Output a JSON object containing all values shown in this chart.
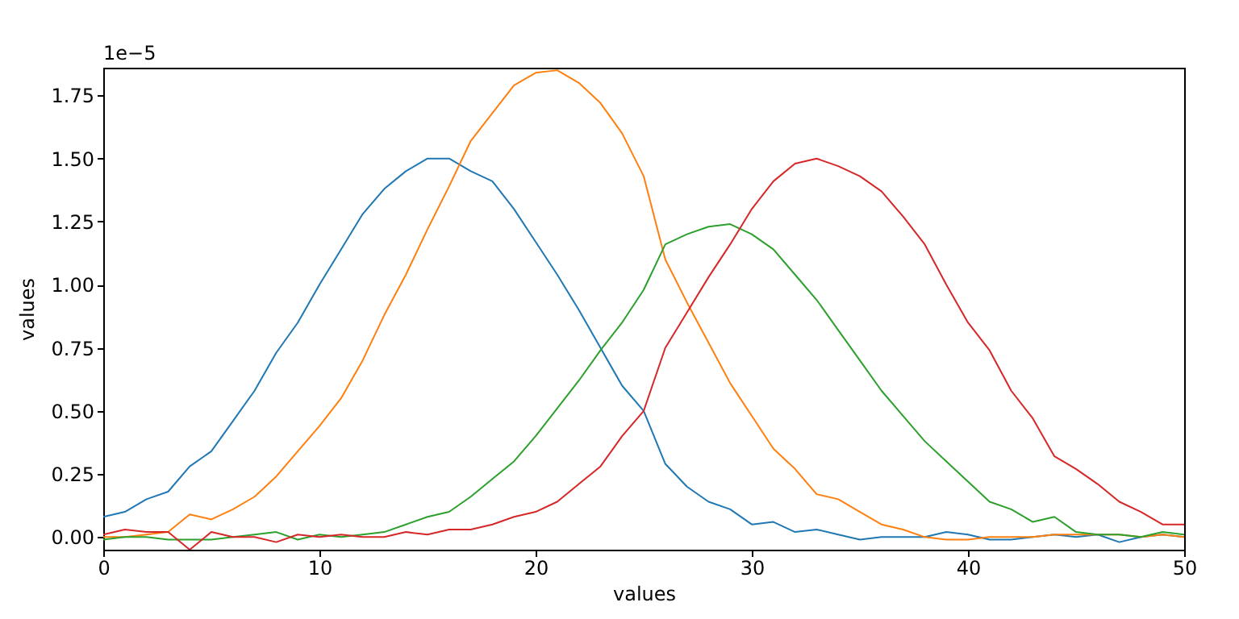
{
  "chart_data": {
    "type": "line",
    "xlabel": "values",
    "ylabel": "values",
    "annotations": [
      "1e−5"
    ],
    "x": [
      0,
      1,
      2,
      3,
      4,
      5,
      6,
      7,
      8,
      9,
      10,
      11,
      12,
      13,
      14,
      15,
      16,
      17,
      18,
      19,
      20,
      21,
      22,
      23,
      24,
      25,
      26,
      27,
      28,
      29,
      30,
      31,
      32,
      33,
      34,
      35,
      36,
      37,
      38,
      39,
      40,
      41,
      42,
      43,
      44,
      45,
      46,
      47,
      48,
      49,
      50
    ],
    "series": [
      {
        "color": "#1f77b4",
        "values": [
          0.08,
          0.1,
          0.15,
          0.18,
          0.28,
          0.34,
          0.46,
          0.58,
          0.73,
          0.85,
          1.0,
          1.14,
          1.28,
          1.38,
          1.45,
          1.5,
          1.5,
          1.45,
          1.41,
          1.3,
          1.17,
          1.04,
          0.9,
          0.75,
          0.6,
          0.5,
          0.29,
          0.2,
          0.14,
          0.11,
          0.05,
          0.06,
          0.02,
          0.03,
          0.01,
          -0.01,
          0.0,
          0.0,
          0.0,
          0.02,
          0.01,
          -0.01,
          -0.01,
          0.0,
          0.01,
          0.0,
          0.01,
          -0.02,
          0.0,
          0.01,
          0.0
        ]
      },
      {
        "color": "#ff7f0e",
        "values": [
          0.0,
          0.0,
          0.01,
          0.02,
          0.09,
          0.07,
          0.11,
          0.16,
          0.24,
          0.34,
          0.44,
          0.55,
          0.7,
          0.88,
          1.04,
          1.22,
          1.39,
          1.57,
          1.68,
          1.79,
          1.84,
          1.85,
          1.8,
          1.72,
          1.6,
          1.43,
          1.1,
          0.93,
          0.77,
          0.61,
          0.48,
          0.35,
          0.27,
          0.17,
          0.15,
          0.1,
          0.05,
          0.03,
          0.0,
          -0.01,
          -0.01,
          0.0,
          0.0,
          0.0,
          0.01,
          0.01,
          0.01,
          0.01,
          0.0,
          0.01,
          0.0
        ]
      },
      {
        "color": "#2ca02c",
        "values": [
          -0.01,
          0.0,
          0.0,
          -0.01,
          -0.01,
          -0.01,
          0.0,
          0.01,
          0.02,
          -0.01,
          0.01,
          0.0,
          0.01,
          0.02,
          0.05,
          0.08,
          0.1,
          0.16,
          0.23,
          0.3,
          0.4,
          0.51,
          0.62,
          0.74,
          0.85,
          0.98,
          1.16,
          1.2,
          1.23,
          1.24,
          1.2,
          1.14,
          1.04,
          0.94,
          0.82,
          0.7,
          0.58,
          0.48,
          0.38,
          0.3,
          0.22,
          0.14,
          0.11,
          0.06,
          0.08,
          0.02,
          0.01,
          0.01,
          0.0,
          0.02,
          0.01
        ]
      },
      {
        "color": "#d62728",
        "values": [
          0.01,
          0.03,
          0.02,
          0.02,
          -0.05,
          0.02,
          0.0,
          0.0,
          -0.02,
          0.01,
          0.0,
          0.01,
          0.0,
          0.0,
          0.02,
          0.01,
          0.03,
          0.03,
          0.05,
          0.08,
          0.1,
          0.14,
          0.21,
          0.28,
          0.4,
          0.5,
          0.75,
          0.89,
          1.03,
          1.16,
          1.3,
          1.41,
          1.48,
          1.5,
          1.47,
          1.43,
          1.37,
          1.27,
          1.16,
          1.0,
          0.85,
          0.74,
          0.58,
          0.47,
          0.32,
          0.27,
          0.21,
          0.14,
          0.1,
          0.05,
          0.05
        ]
      }
    ],
    "xlim": [
      0,
      50
    ],
    "xticks": [
      0,
      10,
      20,
      30,
      40,
      50
    ],
    "ylim": [
      -0.05,
      1.86
    ],
    "yticks": [
      {
        "value": 0,
        "label": "0.00"
      },
      {
        "value": 0.25,
        "label": "0.25"
      },
      {
        "value": 0.5,
        "label": "0.50"
      },
      {
        "value": 0.75,
        "label": "0.75"
      },
      {
        "value": 1,
        "label": "1.00"
      },
      {
        "value": 1.25,
        "label": "1.25"
      },
      {
        "value": 1.5,
        "label": "1.50"
      },
      {
        "value": 1.75,
        "label": "1.75"
      }
    ],
    "grid": false,
    "legend": false,
    "marker": "none",
    "line_style": "solid"
  }
}
